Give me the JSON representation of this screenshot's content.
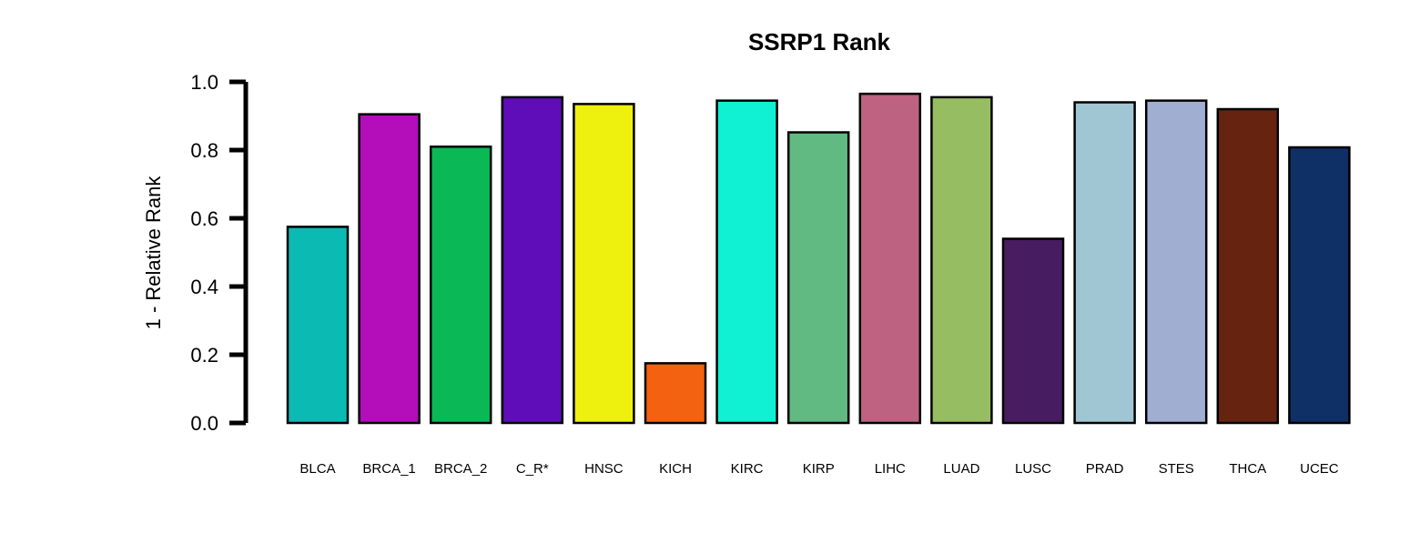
{
  "chart_data": {
    "type": "bar",
    "title": "SSRP1 Rank",
    "xlabel": "",
    "ylabel": "1 - Relative Rank",
    "ylim": [
      0,
      1
    ],
    "yticks": [
      "0.0",
      "0.2",
      "0.4",
      "0.6",
      "0.8",
      "1.0"
    ],
    "grid": false,
    "categories": [
      "BLCA",
      "BRCA_1",
      "BRCA_2",
      "C_R*",
      "HNSC",
      "KICH",
      "KIRC",
      "KIRP",
      "LIHC",
      "LUAD",
      "LUSC",
      "PRAD",
      "STES",
      "THCA",
      "UCEC"
    ],
    "values": [
      0.575,
      0.905,
      0.81,
      0.955,
      0.935,
      0.175,
      0.945,
      0.852,
      0.965,
      0.955,
      0.54,
      0.94,
      0.945,
      0.92,
      0.808
    ],
    "colors": [
      "#0BBAB3",
      "#B40DBA",
      "#0AB956",
      "#5E0DB8",
      "#EEF00E",
      "#F26211",
      "#10F0D2",
      "#60BA82",
      "#BD6281",
      "#97BD63",
      "#481C60",
      "#A0C6D3",
      "#A0AED2",
      "#662410",
      "#0F3066"
    ]
  }
}
